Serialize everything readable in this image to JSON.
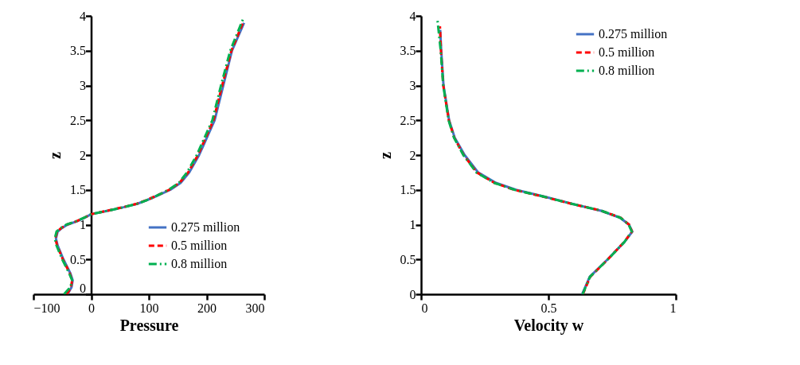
{
  "chart_data": [
    {
      "type": "line",
      "xlabel": "Pressure",
      "ylabel": "z",
      "xlim": [
        -100,
        300
      ],
      "xticks": [
        -100,
        0,
        100,
        200,
        300
      ],
      "ylim": [
        0,
        4
      ],
      "yticks": [
        0,
        0.5,
        1,
        1.5,
        2,
        2.5,
        3,
        3.5,
        4
      ],
      "grid": false,
      "legend": "bottom right",
      "series": [
        {
          "name": "0.275 million",
          "color": "#4472c4",
          "line_style": "solid",
          "x": [
            -41,
            -34,
            -32,
            -36,
            -42,
            -48,
            -53,
            -58,
            -61,
            -58,
            -51,
            -41,
            -24,
            -11,
            0,
            29,
            56,
            80,
            96,
            110,
            137,
            155,
            170,
            187,
            214,
            229,
            244,
            265
          ],
          "values": [
            0,
            0.1,
            0.2,
            0.3,
            0.4,
            0.5,
            0.6,
            0.7,
            0.8,
            0.9,
            0.95,
            1.0,
            1.05,
            1.1,
            1.15,
            1.2,
            1.25,
            1.3,
            1.35,
            1.4,
            1.5,
            1.6,
            1.75,
            2.0,
            2.5,
            3.0,
            3.5,
            3.9
          ]
        },
        {
          "name": "0.5 million",
          "color": "#ff0000",
          "line_style": "dashed",
          "x": [
            -42,
            -35,
            -33,
            -37,
            -43,
            -49,
            -54,
            -59,
            -62,
            -59,
            -52,
            -42,
            -25,
            -12,
            0,
            28,
            55,
            79,
            95,
            109,
            135,
            153,
            168,
            185,
            212,
            227,
            243,
            264
          ],
          "values": [
            0,
            0.1,
            0.2,
            0.3,
            0.4,
            0.5,
            0.6,
            0.7,
            0.8,
            0.9,
            0.95,
            1.0,
            1.05,
            1.1,
            1.15,
            1.2,
            1.25,
            1.3,
            1.35,
            1.4,
            1.5,
            1.6,
            1.75,
            2.0,
            2.5,
            3.0,
            3.5,
            3.92
          ]
        },
        {
          "name": "0.8 million",
          "color": "#00b050",
          "line_style": "dashdot",
          "x": [
            -47,
            -36,
            -33,
            -38,
            -44,
            -50,
            -55,
            -60,
            -63,
            -60,
            -53,
            -43,
            -26,
            -12,
            0,
            29,
            56,
            80,
            96,
            110,
            134,
            152,
            166,
            183,
            210,
            225,
            241,
            263
          ],
          "values": [
            0,
            0.1,
            0.2,
            0.3,
            0.4,
            0.5,
            0.6,
            0.7,
            0.8,
            0.9,
            0.95,
            1.0,
            1.05,
            1.1,
            1.15,
            1.2,
            1.25,
            1.3,
            1.35,
            1.4,
            1.5,
            1.6,
            1.75,
            2.0,
            2.5,
            3.0,
            3.5,
            3.95
          ]
        }
      ]
    },
    {
      "type": "line",
      "xlabel": "Velocity w",
      "ylabel": "z",
      "xlim": [
        0,
        1
      ],
      "xticks": [
        0,
        0.5,
        1
      ],
      "ylim": [
        0,
        4
      ],
      "yticks": [
        0,
        0.5,
        1,
        1.5,
        2,
        2.5,
        3,
        3.5,
        4
      ],
      "grid": false,
      "legend": "top right",
      "series": [
        {
          "name": "0.275 million",
          "color": "#4472c4",
          "line_style": "solid",
          "x": [
            0.632,
            0.662,
            0.732,
            0.798,
            0.829,
            0.816,
            0.781,
            0.706,
            0.592,
            0.487,
            0.373,
            0.294,
            0.224,
            0.171,
            0.132,
            0.11,
            0.088,
            0.079,
            0.075
          ],
          "values": [
            0,
            0.25,
            0.5,
            0.75,
            0.9,
            1.0,
            1.1,
            1.2,
            1.3,
            1.4,
            1.5,
            1.6,
            1.75,
            2.0,
            2.25,
            2.5,
            3.0,
            3.5,
            3.8
          ]
        },
        {
          "name": "0.5 million",
          "color": "#ff0000",
          "line_style": "dashed",
          "x": [
            0.635,
            0.664,
            0.733,
            0.797,
            0.828,
            0.817,
            0.783,
            0.708,
            0.59,
            0.482,
            0.366,
            0.288,
            0.219,
            0.167,
            0.13,
            0.109,
            0.087,
            0.078,
            0.074
          ],
          "values": [
            0,
            0.25,
            0.5,
            0.75,
            0.9,
            1.0,
            1.1,
            1.2,
            1.3,
            1.4,
            1.5,
            1.6,
            1.75,
            2.0,
            2.25,
            2.5,
            3.0,
            3.5,
            3.85
          ]
        },
        {
          "name": "0.8 million",
          "color": "#00b050",
          "line_style": "dashdot",
          "x": [
            0.634,
            0.663,
            0.733,
            0.798,
            0.827,
            0.815,
            0.782,
            0.708,
            0.591,
            0.484,
            0.368,
            0.287,
            0.217,
            0.166,
            0.129,
            0.108,
            0.087,
            0.077,
            0.064
          ],
          "values": [
            0,
            0.25,
            0.5,
            0.75,
            0.9,
            1.0,
            1.1,
            1.2,
            1.3,
            1.4,
            1.5,
            1.6,
            1.75,
            2.0,
            2.25,
            2.5,
            3.0,
            3.5,
            3.95
          ]
        }
      ]
    }
  ]
}
